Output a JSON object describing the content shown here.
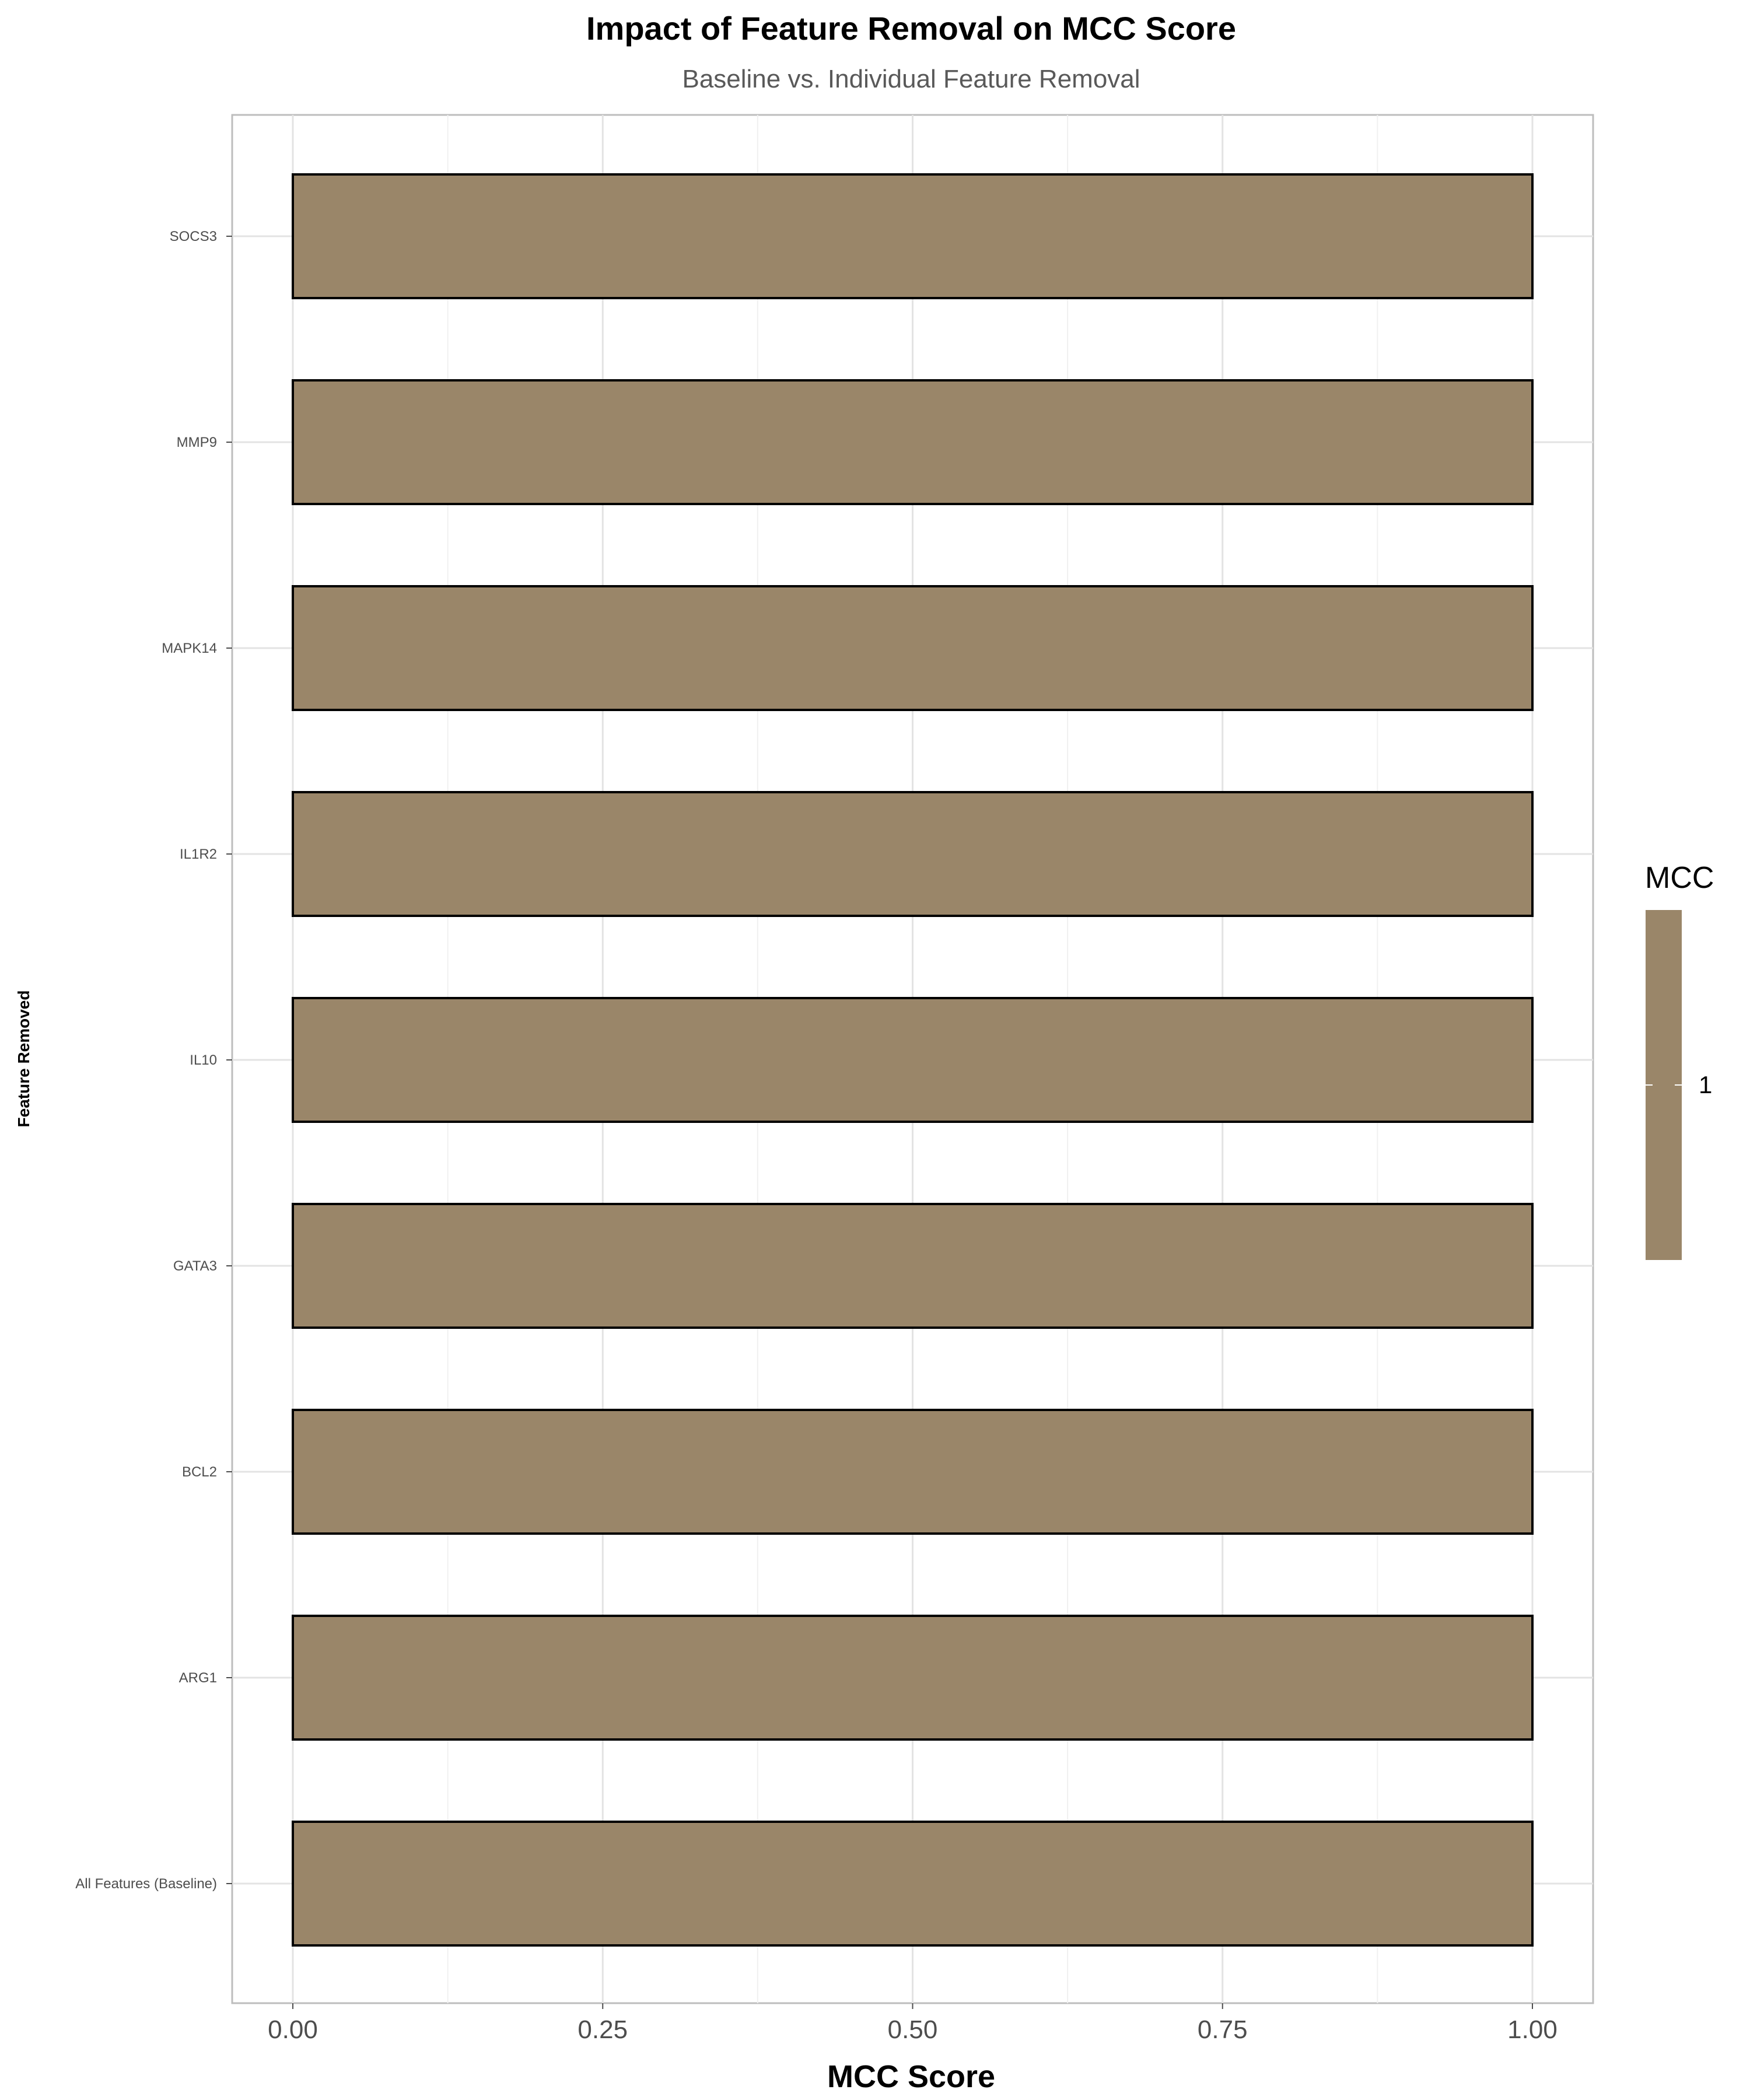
{
  "chart_data": {
    "type": "bar",
    "orientation": "horizontal",
    "title": "Impact of Feature Removal on MCC Score",
    "subtitle": "Baseline vs. Individual Feature Removal",
    "xlabel": "MCC Score",
    "ylabel": "Feature Removed",
    "categories": [
      "All Features (Baseline)",
      "ARG1",
      "BCL2",
      "GATA3",
      "IL10",
      "IL1R2",
      "MAPK14",
      "MMP9",
      "SOCS3"
    ],
    "values": [
      1,
      1,
      1,
      1,
      1,
      1,
      1,
      1,
      1
    ],
    "xlim": [
      0,
      1
    ],
    "xticks": [
      "0.00",
      "0.25",
      "0.50",
      "0.75",
      "1.00"
    ],
    "xtick_values": [
      0,
      0.25,
      0.5,
      0.75,
      1
    ],
    "grid": true,
    "bar_color": "#9a8669",
    "bar_outline": "#000000",
    "legend": {
      "title": "MCC",
      "labels": [
        "1"
      ],
      "placement": "right"
    }
  }
}
